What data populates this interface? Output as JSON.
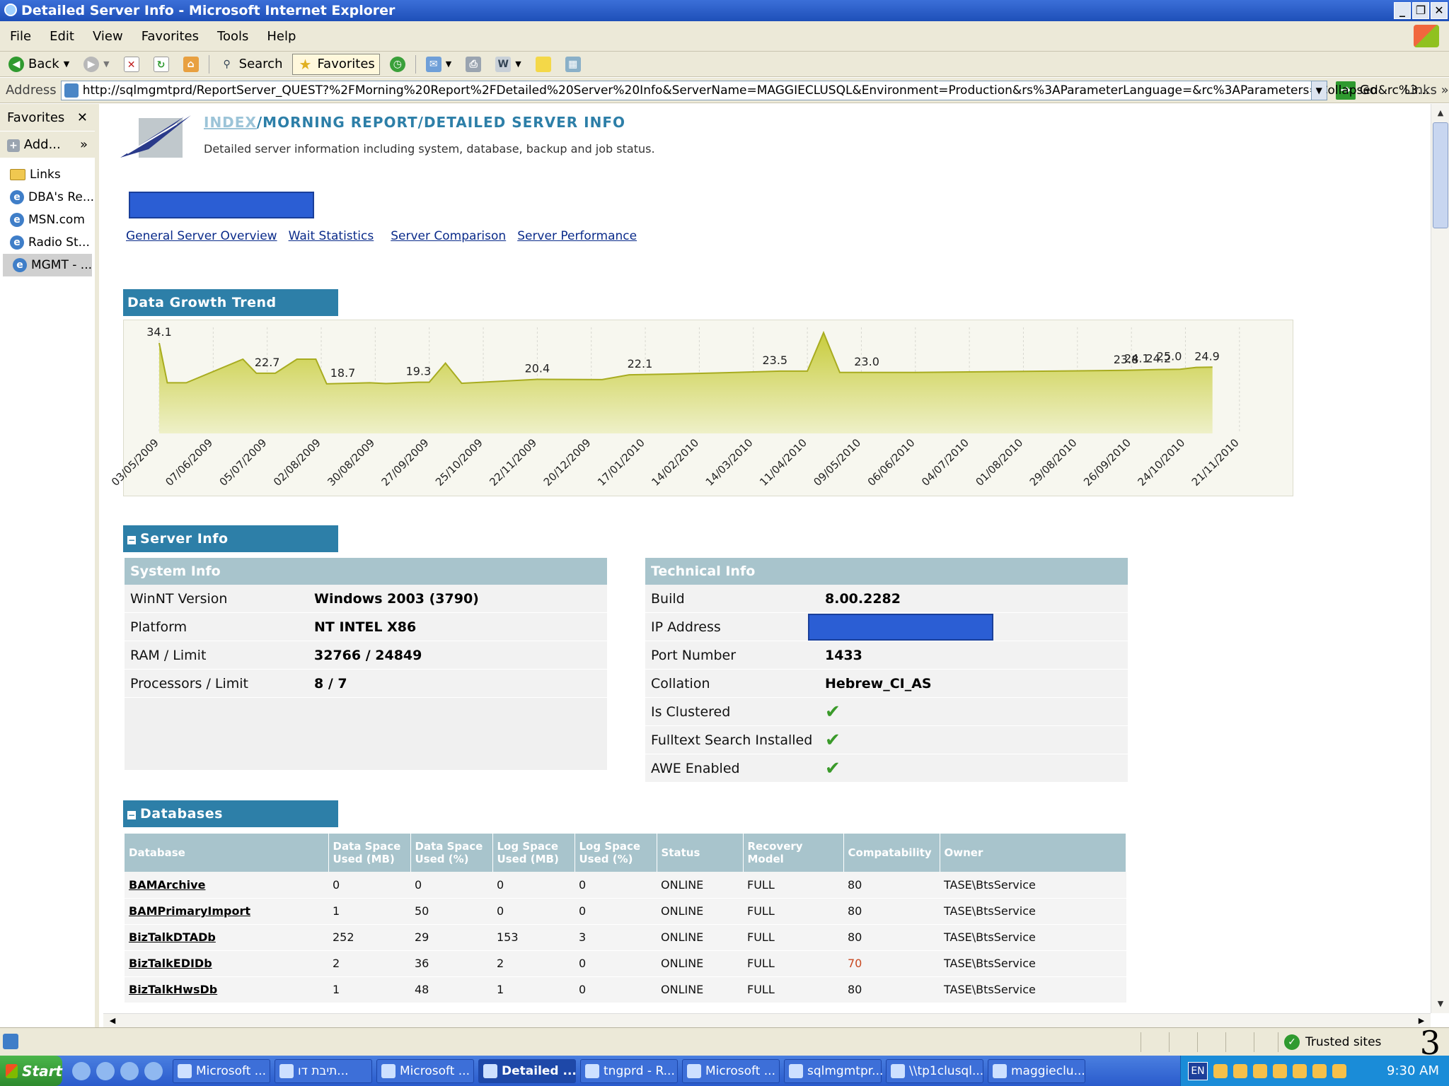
{
  "window": {
    "title": "Detailed Server Info - Microsoft Internet Explorer"
  },
  "menu": [
    "File",
    "Edit",
    "View",
    "Favorites",
    "Tools",
    "Help"
  ],
  "toolbar": {
    "back": "Back",
    "search": "Search",
    "favorites": "Favorites"
  },
  "address": {
    "label": "Address",
    "url": "http://sqlmgmtprd/ReportServer_QUEST?%2FMorning%20Report%2FDetailed%20Server%20Info&ServerName=MAGGIECLUSQL&Environment=Production&rs%3AParameterLanguage=&rc%3AParameters=Collapsed&rc%3...",
    "go": "Go",
    "links": "Links"
  },
  "favorites": {
    "title": "Favorites",
    "add": "Add...",
    "items": [
      "Links",
      "DBA's Re...",
      "MSN.com",
      "Radio St...",
      "MGMT - ..."
    ]
  },
  "report": {
    "crumb_index": "INDEX",
    "crumb_path": "/MORNING REPORT/DETAILED SERVER INFO",
    "subtitle": "Detailed server information including system, database, backup and job status.",
    "nav": [
      "General Server Overview",
      "Wait Statistics",
      "Server Comparison",
      "Server Performance"
    ]
  },
  "sections": {
    "growth": "Data Growth Trend",
    "server_info": "Server Info",
    "databases": "Databases"
  },
  "chart_data": {
    "type": "area",
    "color": "#c8cc3c",
    "x": [
      "03/05/2009",
      "07/06/2009",
      "05/07/2009",
      "02/08/2009",
      "30/08/2009",
      "27/09/2009",
      "25/10/2009",
      "22/11/2009",
      "20/12/2009",
      "17/01/2010",
      "14/02/2010",
      "14/03/2010",
      "11/04/2010",
      "09/05/2010",
      "06/06/2010",
      "04/07/2010",
      "01/08/2010",
      "29/08/2010",
      "26/09/2010",
      "24/10/2010",
      "21/11/2010"
    ],
    "points": [
      [
        0,
        34.1
      ],
      [
        0.15,
        19.1
      ],
      [
        0.5,
        19.1
      ],
      [
        1.55,
        28.0
      ],
      [
        1.8,
        22.7
      ],
      [
        2.15,
        22.7
      ],
      [
        2.55,
        28.0
      ],
      [
        2.9,
        28.0
      ],
      [
        3.1,
        18.7
      ],
      [
        3.9,
        19.1
      ],
      [
        4.2,
        18.8
      ],
      [
        4.8,
        19.3
      ],
      [
        5.0,
        19.3
      ],
      [
        5.3,
        26.5
      ],
      [
        5.6,
        18.9
      ],
      [
        7.0,
        20.4
      ],
      [
        8.2,
        20.3
      ],
      [
        8.7,
        22.1
      ],
      [
        9.5,
        22.4
      ],
      [
        10.5,
        22.9
      ],
      [
        11.5,
        23.5
      ],
      [
        12.0,
        23.5
      ],
      [
        12.3,
        38.0
      ],
      [
        12.6,
        23.0
      ],
      [
        14.0,
        23.0
      ],
      [
        17.9,
        23.8
      ],
      [
        18.5,
        24.1
      ],
      [
        18.9,
        24.2
      ],
      [
        19.2,
        24.9
      ],
      [
        19.5,
        25.0
      ]
    ],
    "labels": [
      {
        "text": "34.1",
        "x": 0,
        "y": 34.1
      },
      {
        "text": "22.7",
        "x": 2.0,
        "y": 22.7
      },
      {
        "text": "18.7",
        "x": 3.4,
        "y": 18.7
      },
      {
        "text": "19.3",
        "x": 4.8,
        "y": 19.3
      },
      {
        "text": "20.4",
        "x": 7.0,
        "y": 20.4
      },
      {
        "text": "22.1",
        "x": 8.9,
        "y": 22.1
      },
      {
        "text": "23.5",
        "x": 11.4,
        "y": 23.5
      },
      {
        "text": "23.0",
        "x": 13.1,
        "y": 23.0
      },
      {
        "text": "24.1",
        "x": 18.1,
        "y": 24.1
      },
      {
        "text": "25.0",
        "x": 18.7,
        "y": 25.0
      },
      {
        "text": "23.8",
        "x": 17.9,
        "y": 23.8
      },
      {
        "text": "24.2",
        "x": 18.5,
        "y": 24.2
      },
      {
        "text": "24.9",
        "x": 19.4,
        "y": 24.9
      }
    ],
    "ylim": [
      0,
      40
    ],
    "grid": "vertical"
  },
  "system_info": {
    "title": "System Info",
    "rows": [
      {
        "label": "WinNT Version",
        "value": "Windows 2003 (3790)"
      },
      {
        "label": "Platform",
        "value": "NT INTEL X86"
      },
      {
        "label": "RAM / Limit",
        "value": "32766 / 24849"
      },
      {
        "label": "Processors / Limit",
        "value": "8 / 7"
      }
    ]
  },
  "technical_info": {
    "title": "Technical Info",
    "rows": [
      {
        "label": "Build",
        "value": "8.00.2282"
      },
      {
        "label": "IP Address",
        "value": ""
      },
      {
        "label": "Port Number",
        "value": "1433"
      },
      {
        "label": "Collation",
        "value": "Hebrew_CI_AS"
      },
      {
        "label": "Is Clustered",
        "value": "✔"
      },
      {
        "label": "Fulltext Search Installed",
        "value": "✔"
      },
      {
        "label": "AWE Enabled",
        "value": "✔"
      }
    ]
  },
  "databases": {
    "columns": [
      "Database",
      "Data Space Used (MB)",
      "Data Space Used (%)",
      "Log Space Used (MB)",
      "Log Space Used (%)",
      "Status",
      "Recovery Model",
      "Compatability",
      "Owner"
    ],
    "rows": [
      [
        "BAMArchive",
        "0",
        "0",
        "0",
        "0",
        "ONLINE",
        "FULL",
        "80",
        "TASE\\BtsService"
      ],
      [
        "BAMPrimaryImport",
        "1",
        "50",
        "0",
        "0",
        "ONLINE",
        "FULL",
        "80",
        "TASE\\BtsService"
      ],
      [
        "BizTalkDTADb",
        "252",
        "29",
        "153",
        "3",
        "ONLINE",
        "FULL",
        "80",
        "TASE\\BtsService"
      ],
      [
        "BizTalkEDIDb",
        "2",
        "36",
        "2",
        "0",
        "ONLINE",
        "FULL",
        "70",
        "TASE\\BtsService"
      ],
      [
        "BizTalkHwsDb",
        "1",
        "48",
        "1",
        "0",
        "ONLINE",
        "FULL",
        "80",
        "TASE\\BtsService"
      ]
    ]
  },
  "status": {
    "zone": "Trusted sites",
    "page": "3"
  },
  "taskbar": {
    "start": "Start",
    "tasks": [
      "Microsoft ...",
      "תיבת דו...",
      "Microsoft ...",
      "Detailed ...",
      "tngprd - R...",
      "Microsoft ...",
      "sqlmgmtpr...",
      "\\\\tp1clusql...",
      "maggieclu..."
    ],
    "active": 3,
    "lang": "EN",
    "clock": "9:30 AM"
  }
}
